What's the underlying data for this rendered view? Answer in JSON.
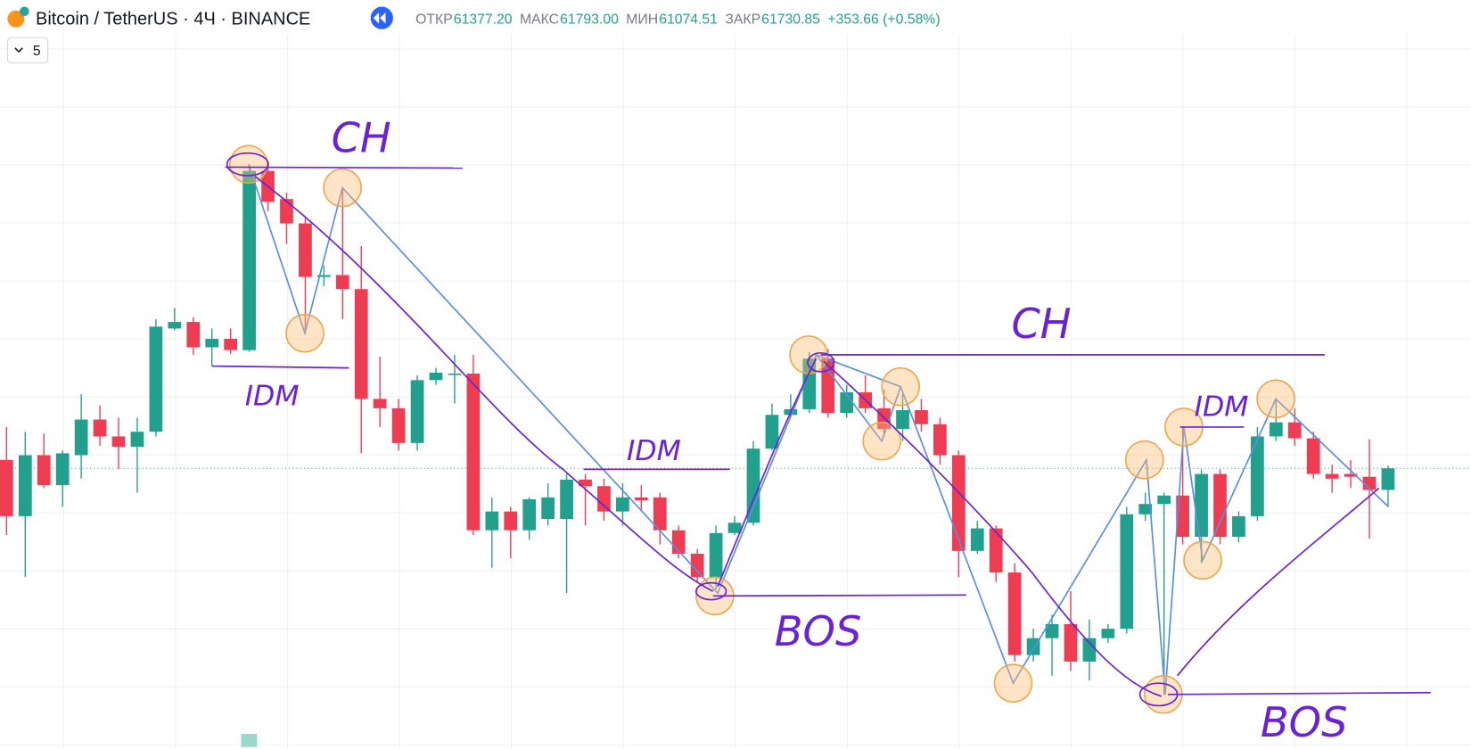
{
  "header": {
    "symbol": "Bitcoin / TetherUS · 4Ч · BINANCE",
    "ohlc": [
      {
        "label": "ОТКР",
        "value": "61377.20"
      },
      {
        "label": "МАКС",
        "value": "61793.00"
      },
      {
        "label": "МИН",
        "value": "61074.51"
      },
      {
        "label": "ЗАКР",
        "value": "61730.85"
      }
    ],
    "change": "+353.66 (+0.58%)",
    "indicator_count": "5"
  },
  "chart_data": {
    "type": "candlestick",
    "up_color": "#22a08e",
    "down_color": "#ee3d52",
    "ylim": [
      57290,
      68315
    ],
    "open": [
      61865,
      60965,
      61940,
      61460,
      61940,
      62510,
      62240,
      62075,
      62315,
      63965,
      64070,
      63665,
      63800,
      63620,
      66485,
      66035,
      65645,
      64790,
      64820,
      64595,
      62840,
      62690,
      62135,
      63140,
      63245,
      63245,
      60740,
      61040,
      60740,
      60920,
      60920,
      61550,
      61445,
      61040,
      61265,
      61265,
      60740,
      60365,
      59990,
      60695,
      60860,
      62045,
      62585,
      62675,
      63485,
      62615,
      62945,
      62690,
      62360,
      62660,
      62435,
      61940,
      60410,
      60770,
      60065,
      58745,
      59015,
      59240,
      58640,
      59015,
      59165,
      60995,
      61160,
      61295,
      60635,
      61640,
      60635,
      60965,
      62240,
      62465,
      62210,
      61640,
      61640,
      61595,
      61385
    ],
    "high": [
      62390,
      62315,
      62285,
      62015,
      62915,
      62735,
      62540,
      62540,
      64115,
      64295,
      64145,
      63965,
      63965,
      66590,
      66545,
      66140,
      65735,
      64970,
      66215,
      65285,
      63515,
      62840,
      63215,
      63335,
      63545,
      63545,
      61265,
      61115,
      61265,
      61490,
      61640,
      61640,
      61565,
      61490,
      61460,
      61340,
      60815,
      60440,
      60815,
      60965,
      62165,
      62765,
      62915,
      63590,
      63635,
      63065,
      63215,
      62990,
      62915,
      62840,
      62540,
      62015,
      60890,
      60815,
      60215,
      59165,
      59390,
      59765,
      59315,
      59240,
      61115,
      61340,
      61340,
      62390,
      61715,
      61715,
      61040,
      62390,
      62840,
      62690,
      62315,
      61790,
      61865,
      62195,
      61775
    ],
    "low": [
      60665,
      59990,
      61415,
      61115,
      61565,
      62090,
      61715,
      61340,
      62240,
      63935,
      63545,
      63365,
      63560,
      63590,
      65840,
      65315,
      63890,
      64640,
      64115,
      61970,
      62390,
      62015,
      62015,
      63065,
      62765,
      60665,
      60140,
      60290,
      60590,
      60815,
      59735,
      60815,
      60890,
      60815,
      61040,
      60515,
      60290,
      59915,
      59795,
      60665,
      60815,
      62015,
      62540,
      62615,
      62540,
      62540,
      62615,
      62240,
      62165,
      62315,
      61790,
      59990,
      60365,
      59915,
      58640,
      58640,
      58415,
      58490,
      58340,
      58940,
      59090,
      60890,
      58115,
      60515,
      60215,
      60515,
      60545,
      60890,
      62165,
      62090,
      61565,
      61340,
      61415,
      60605,
      61115
    ],
    "close": [
      60965,
      61940,
      61460,
      61970,
      62510,
      62240,
      62075,
      62315,
      63995,
      64070,
      63665,
      63800,
      63620,
      66485,
      65990,
      65645,
      64790,
      64820,
      64595,
      62840,
      62690,
      62135,
      63140,
      63260,
      63245,
      60740,
      61040,
      60740,
      61235,
      61265,
      61550,
      61445,
      61040,
      61265,
      61220,
      60740,
      60365,
      59990,
      60695,
      60860,
      62045,
      62585,
      62675,
      63485,
      62615,
      62945,
      62690,
      62360,
      62660,
      62435,
      61940,
      60410,
      60770,
      60065,
      58745,
      59015,
      59240,
      58640,
      59015,
      59165,
      60995,
      61160,
      61295,
      60635,
      61640,
      60635,
      60965,
      62240,
      62465,
      62210,
      61640,
      61565,
      61595,
      61385,
      61730
    ],
    "annotations": [
      "CH",
      "IDM",
      "IDM",
      "BOS",
      "CH",
      "IDM",
      "BOS"
    ]
  }
}
